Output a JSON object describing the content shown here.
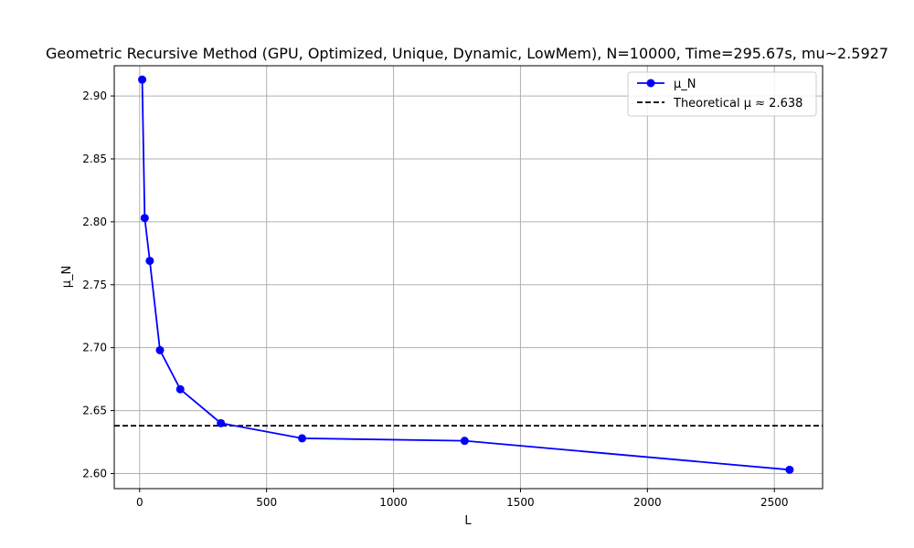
{
  "chart_data": {
    "type": "line",
    "title": "Geometric Recursive Method (GPU, Optimized, Unique, Dynamic, LowMem), N=10000, Time=295.67s, mu~2.5927",
    "xlabel": "L",
    "ylabel": "μ_N",
    "xlim": [
      -100,
      2690
    ],
    "ylim": [
      2.588,
      2.924
    ],
    "x_ticks": [
      0,
      500,
      1000,
      1500,
      2000,
      2500
    ],
    "x_tick_labels": [
      "0",
      "500",
      "1000",
      "1500",
      "2000",
      "2500"
    ],
    "y_ticks": [
      2.6,
      2.65,
      2.7,
      2.75,
      2.8,
      2.85,
      2.9
    ],
    "y_tick_labels": [
      "2.60",
      "2.65",
      "2.70",
      "2.75",
      "2.80",
      "2.85",
      "2.90"
    ],
    "grid": true,
    "legend_position": "top-right",
    "series": [
      {
        "name": "μ_N",
        "color": "#0000ff",
        "marker": "circle",
        "x": [
          10,
          20,
          40,
          80,
          160,
          320,
          640,
          1280,
          2560
        ],
        "y": [
          2.913,
          2.803,
          2.769,
          2.698,
          2.667,
          2.64,
          2.628,
          2.626,
          2.603
        ]
      }
    ],
    "reference_lines": [
      {
        "name": "Theoretical μ ≈ 2.638",
        "orientation": "horizontal",
        "y": 2.638,
        "color": "#000000",
        "style": "dashed"
      }
    ]
  }
}
